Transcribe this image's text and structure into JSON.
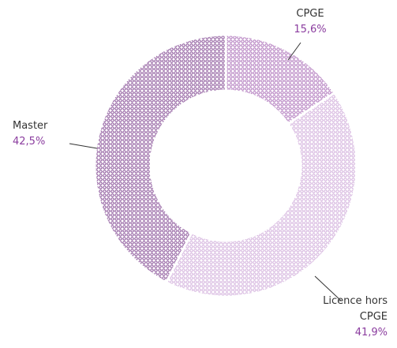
{
  "chart_data": {
    "type": "pie",
    "categories": [
      "CPGE",
      "Licence hors CPGE",
      "Master"
    ],
    "values": [
      15.6,
      41.9,
      42.5
    ],
    "value_labels": [
      "15,6%",
      "41,9%",
      "42,5%"
    ],
    "colors": [
      "#a565b3",
      "#cda6d8",
      "#7b3d8c"
    ]
  }
}
